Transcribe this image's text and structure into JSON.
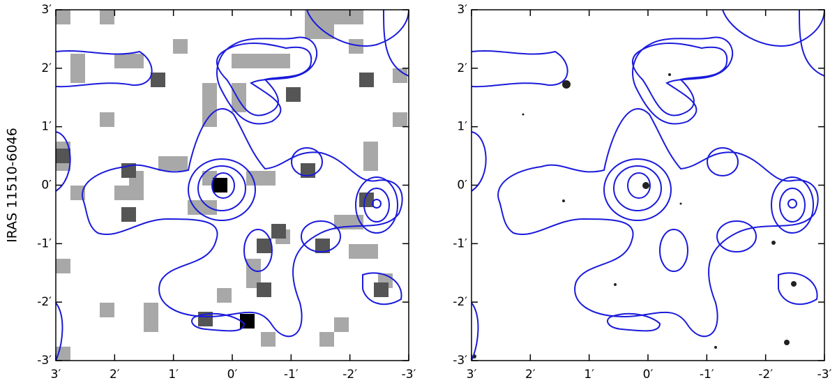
{
  "chart_data": [
    {
      "type": "map",
      "xlim": [
        3,
        -3
      ],
      "ylim": [
        -3,
        3
      ],
      "xticks": [
        {
          "value": 3,
          "label": "3′"
        },
        {
          "value": 2,
          "label": "2′"
        },
        {
          "value": 1,
          "label": "1′"
        },
        {
          "value": 0,
          "label": "0′"
        },
        {
          "value": -1,
          "label": "-1′"
        },
        {
          "value": -2,
          "label": "-2′"
        },
        {
          "value": -3,
          "label": "-3′"
        }
      ],
      "yticks": [
        {
          "value": -3,
          "label": "-3′"
        },
        {
          "value": -2,
          "label": "-2′"
        },
        {
          "value": -1,
          "label": "-1′"
        },
        {
          "value": 0,
          "label": "0′"
        },
        {
          "value": 1,
          "label": "1′"
        },
        {
          "value": 2,
          "label": "2′"
        },
        {
          "value": 3,
          "label": "3′"
        }
      ],
      "ylabel": "IRAS 11510-6046"
    },
    {
      "type": "map",
      "xlim": [
        3,
        -3
      ],
      "ylim": [
        -3,
        3
      ],
      "xticks": [
        {
          "value": 3,
          "label": "3′"
        },
        {
          "value": 2,
          "label": "2′"
        },
        {
          "value": 1,
          "label": "1′"
        },
        {
          "value": 0,
          "label": "0′"
        },
        {
          "value": -1,
          "label": "-1′"
        },
        {
          "value": -2,
          "label": "-2′"
        },
        {
          "value": -3,
          "label": "-3′"
        }
      ],
      "yticks": [
        {
          "value": -3,
          "label": "-3′"
        },
        {
          "value": -2,
          "label": "-2′"
        },
        {
          "value": -1,
          "label": "-1′"
        },
        {
          "value": 0,
          "label": "0′"
        },
        {
          "value": 1,
          "label": "1′"
        },
        {
          "value": 2,
          "label": "2′"
        },
        {
          "value": 3,
          "label": "3′"
        }
      ]
    }
  ]
}
